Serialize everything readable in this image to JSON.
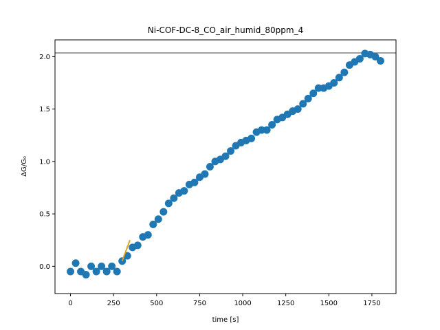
{
  "chart_data": {
    "type": "scatter",
    "title": "Ni-COF-DC-8_CO_air_humid_80ppm_4",
    "xlabel": "time [s]",
    "ylabel": "ΔG/G₀",
    "xlim": [
      -90,
      1890
    ],
    "ylim": [
      -0.26,
      2.16
    ],
    "xticks": [
      0,
      250,
      500,
      750,
      1000,
      1250,
      1500,
      1750
    ],
    "xtick_labels": [
      "0",
      "250",
      "500",
      "750",
      "1000",
      "1250",
      "1500",
      "1750"
    ],
    "yticks": [
      0.0,
      0.5,
      1.0,
      1.5,
      2.0
    ],
    "ytick_labels": [
      "0.0",
      "0.5",
      "1.0",
      "1.5",
      "2.0"
    ],
    "grid": false,
    "series": [
      {
        "marker": "circle",
        "color": "#1f77b4",
        "x": [
          0,
          30,
          60,
          90,
          120,
          150,
          180,
          210,
          240,
          270,
          300,
          330,
          360,
          390,
          420,
          450,
          480,
          510,
          540,
          570,
          600,
          630,
          660,
          690,
          720,
          750,
          780,
          810,
          840,
          870,
          900,
          930,
          960,
          990,
          1020,
          1050,
          1080,
          1110,
          1140,
          1170,
          1200,
          1230,
          1260,
          1290,
          1320,
          1350,
          1380,
          1410,
          1440,
          1470,
          1500,
          1530,
          1560,
          1590,
          1620,
          1650,
          1680,
          1710,
          1740,
          1770,
          1800
        ],
        "y": [
          -0.05,
          0.03,
          -0.05,
          -0.08,
          0.0,
          -0.05,
          0.0,
          -0.05,
          0.0,
          -0.05,
          0.05,
          0.1,
          0.18,
          0.2,
          0.28,
          0.3,
          0.4,
          0.45,
          0.52,
          0.6,
          0.65,
          0.7,
          0.72,
          0.78,
          0.8,
          0.85,
          0.88,
          0.95,
          1.0,
          1.02,
          1.05,
          1.1,
          1.15,
          1.18,
          1.2,
          1.22,
          1.28,
          1.3,
          1.3,
          1.35,
          1.4,
          1.42,
          1.45,
          1.48,
          1.5,
          1.55,
          1.6,
          1.65,
          1.7,
          1.7,
          1.72,
          1.75,
          1.8,
          1.85,
          1.92,
          1.95,
          1.98,
          2.03,
          2.02,
          2.0,
          1.96
        ]
      },
      {
        "type": "line",
        "color": "#daa520",
        "x": [
          300,
          345
        ],
        "y": [
          0.05,
          0.25
        ]
      }
    ],
    "hline": {
      "y": 2.035,
      "color": "#808080"
    }
  }
}
